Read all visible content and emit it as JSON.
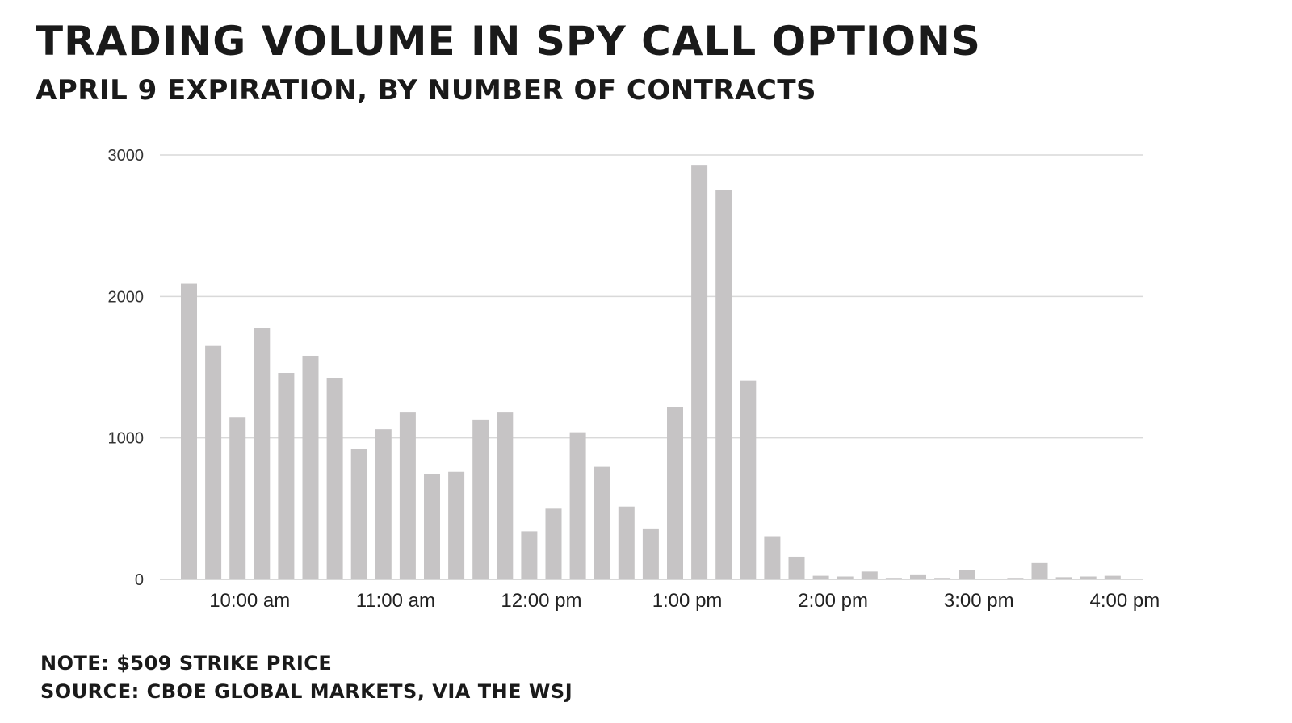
{
  "chart_data": {
    "type": "bar",
    "title": "Trading volume in SPY call options",
    "subtitle": "April 9 expiration, by number of contracts",
    "xlabel": "",
    "ylabel": "",
    "ylim": [
      0,
      3000
    ],
    "yticks": [
      0,
      1000,
      2000,
      3000
    ],
    "yticks_labels": [
      "0",
      "1000",
      "2000",
      "3000"
    ],
    "xticks_labels": [
      "10:00 am",
      "11:00 am",
      "12:00 pm",
      "1:00 pm",
      "2:00 pm",
      "3:00 pm",
      "4:00 pm"
    ],
    "xticks_positions": [
      2.5,
      8.5,
      14.5,
      20.5,
      26.5,
      32.5,
      38.5
    ],
    "grid": true,
    "bar_color": "#c6c4c5",
    "values": [
      2090,
      1650,
      1145,
      1775,
      1460,
      1580,
      1425,
      920,
      1060,
      1180,
      745,
      760,
      1130,
      1180,
      340,
      500,
      1040,
      795,
      515,
      360,
      1215,
      2925,
      2750,
      1405,
      305,
      160,
      25,
      20,
      55,
      10,
      35,
      10,
      65,
      5,
      10,
      115,
      15,
      20,
      25
    ]
  },
  "note": "Note: $509 strike price",
  "source": "Source: Cboe Global Markets, via the WSJ",
  "colors": {
    "grid": "#d9d9d9",
    "text": "#1a1a1a"
  }
}
